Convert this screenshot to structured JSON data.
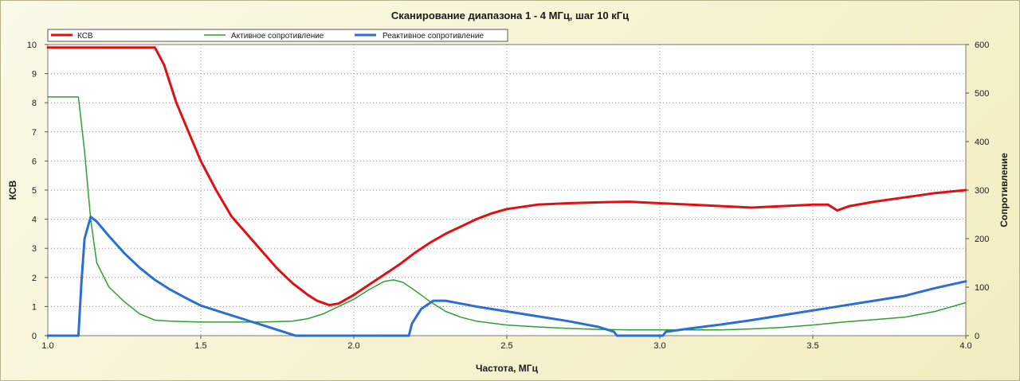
{
  "chart_data": {
    "type": "line",
    "title": "Сканирование диапазона 1 - 4 МГц, шаг 10 кГц",
    "xlabel": "Частота, МГц",
    "ylabel_left": "КСВ",
    "ylabel_right": "Сопротивление",
    "xlim": [
      1.0,
      4.0
    ],
    "ylim_left": [
      0,
      10
    ],
    "ylim_right": [
      0,
      600
    ],
    "x_ticks": [
      "1.0",
      "1.5",
      "2.0",
      "2.5",
      "3.0",
      "3.5",
      "4.0"
    ],
    "y_left_ticks": [
      "0",
      "1",
      "2",
      "3",
      "4",
      "5",
      "6",
      "7",
      "8",
      "9",
      "10"
    ],
    "y_right_ticks": [
      "0",
      "100",
      "200",
      "300",
      "400",
      "500",
      "600"
    ],
    "grid": true,
    "legend_position": "top-left",
    "series": [
      {
        "name": "КСВ",
        "axis": "left",
        "color": "#e01010",
        "points": [
          [
            1.0,
            9.9
          ],
          [
            1.35,
            9.9
          ],
          [
            1.38,
            9.3
          ],
          [
            1.42,
            8.0
          ],
          [
            1.46,
            7.0
          ],
          [
            1.5,
            6.0
          ],
          [
            1.55,
            5.0
          ],
          [
            1.6,
            4.1
          ],
          [
            1.65,
            3.5
          ],
          [
            1.7,
            2.9
          ],
          [
            1.75,
            2.3
          ],
          [
            1.8,
            1.8
          ],
          [
            1.85,
            1.4
          ],
          [
            1.88,
            1.2
          ],
          [
            1.92,
            1.05
          ],
          [
            1.95,
            1.1
          ],
          [
            2.0,
            1.4
          ],
          [
            2.05,
            1.75
          ],
          [
            2.1,
            2.1
          ],
          [
            2.15,
            2.45
          ],
          [
            2.2,
            2.85
          ],
          [
            2.25,
            3.2
          ],
          [
            2.3,
            3.5
          ],
          [
            2.35,
            3.75
          ],
          [
            2.4,
            4.0
          ],
          [
            2.45,
            4.2
          ],
          [
            2.5,
            4.35
          ],
          [
            2.6,
            4.5
          ],
          [
            2.7,
            4.55
          ],
          [
            2.8,
            4.58
          ],
          [
            2.9,
            4.6
          ],
          [
            3.0,
            4.55
          ],
          [
            3.1,
            4.5
          ],
          [
            3.2,
            4.45
          ],
          [
            3.3,
            4.4
          ],
          [
            3.4,
            4.45
          ],
          [
            3.5,
            4.5
          ],
          [
            3.55,
            4.5
          ],
          [
            3.58,
            4.3
          ],
          [
            3.62,
            4.45
          ],
          [
            3.7,
            4.6
          ],
          [
            3.8,
            4.75
          ],
          [
            3.9,
            4.9
          ],
          [
            4.0,
            5.0
          ]
        ]
      },
      {
        "name": "Активное сопротивление",
        "axis": "right",
        "color": "#2fa02f",
        "points": [
          [
            1.0,
            492
          ],
          [
            1.1,
            492
          ],
          [
            1.12,
            380
          ],
          [
            1.14,
            240
          ],
          [
            1.16,
            150
          ],
          [
            1.2,
            100
          ],
          [
            1.25,
            70
          ],
          [
            1.3,
            45
          ],
          [
            1.35,
            32
          ],
          [
            1.4,
            30
          ],
          [
            1.5,
            28
          ],
          [
            1.6,
            28
          ],
          [
            1.7,
            28
          ],
          [
            1.8,
            30
          ],
          [
            1.85,
            35
          ],
          [
            1.9,
            45
          ],
          [
            1.95,
            60
          ],
          [
            2.0,
            75
          ],
          [
            2.05,
            95
          ],
          [
            2.1,
            112
          ],
          [
            2.13,
            115
          ],
          [
            2.16,
            110
          ],
          [
            2.2,
            93
          ],
          [
            2.25,
            70
          ],
          [
            2.3,
            50
          ],
          [
            2.35,
            38
          ],
          [
            2.4,
            30
          ],
          [
            2.5,
            22
          ],
          [
            2.6,
            18
          ],
          [
            2.7,
            15
          ],
          [
            2.8,
            13
          ],
          [
            2.9,
            12
          ],
          [
            3.0,
            12
          ],
          [
            3.1,
            12
          ],
          [
            3.2,
            12
          ],
          [
            3.3,
            14
          ],
          [
            3.4,
            17
          ],
          [
            3.5,
            22
          ],
          [
            3.6,
            28
          ],
          [
            3.7,
            33
          ],
          [
            3.8,
            38
          ],
          [
            3.9,
            50
          ],
          [
            4.0,
            68
          ]
        ]
      },
      {
        "name": "Реактивное сопротивление",
        "axis": "right",
        "color": "#2a6fd6",
        "points": [
          [
            1.0,
            0
          ],
          [
            1.1,
            0
          ],
          [
            1.11,
            110
          ],
          [
            1.12,
            200
          ],
          [
            1.14,
            245
          ],
          [
            1.16,
            235
          ],
          [
            1.2,
            205
          ],
          [
            1.25,
            170
          ],
          [
            1.3,
            140
          ],
          [
            1.35,
            115
          ],
          [
            1.4,
            95
          ],
          [
            1.45,
            78
          ],
          [
            1.5,
            62
          ],
          [
            1.55,
            52
          ],
          [
            1.6,
            42
          ],
          [
            1.65,
            32
          ],
          [
            1.7,
            22
          ],
          [
            1.75,
            12
          ],
          [
            1.8,
            2
          ],
          [
            1.81,
            0
          ],
          [
            2.18,
            0
          ],
          [
            2.19,
            25
          ],
          [
            2.22,
            55
          ],
          [
            2.26,
            72
          ],
          [
            2.3,
            72
          ],
          [
            2.35,
            66
          ],
          [
            2.4,
            60
          ],
          [
            2.5,
            50
          ],
          [
            2.6,
            40
          ],
          [
            2.7,
            30
          ],
          [
            2.8,
            18
          ],
          [
            2.85,
            8
          ],
          [
            2.86,
            0
          ],
          [
            3.01,
            0
          ],
          [
            3.02,
            8
          ],
          [
            3.1,
            15
          ],
          [
            3.2,
            23
          ],
          [
            3.3,
            32
          ],
          [
            3.4,
            42
          ],
          [
            3.5,
            52
          ],
          [
            3.6,
            62
          ],
          [
            3.7,
            72
          ],
          [
            3.8,
            82
          ],
          [
            3.9,
            98
          ],
          [
            4.0,
            112
          ]
        ]
      }
    ]
  }
}
